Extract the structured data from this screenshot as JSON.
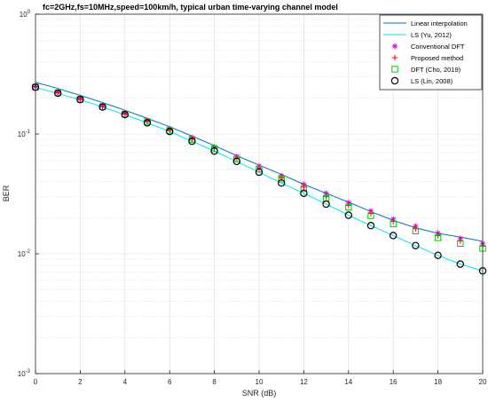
{
  "chart_data": {
    "type": "line",
    "title": "fc=2GHz,fs=10MHz,speed=100km/h, typical urban time-varying channel model",
    "xlabel": "SNR (dB)",
    "ylabel": "BER",
    "xlim": [
      0,
      20
    ],
    "ylim": [
      0.001,
      1
    ],
    "yscale": "log",
    "grid": true,
    "legend_position": "top-right",
    "x_ticks": [
      "0",
      "2",
      "4",
      "6",
      "8",
      "10",
      "12",
      "14",
      "16",
      "18",
      "20"
    ],
    "y_ticks": [
      {
        "base": "10",
        "exp": "0"
      },
      {
        "base": "10",
        "exp": "-1"
      },
      {
        "base": "10",
        "exp": "-2"
      },
      {
        "base": "10",
        "exp": "-3"
      }
    ],
    "x": [
      0,
      1,
      2,
      3,
      4,
      5,
      6,
      7,
      8,
      9,
      10,
      11,
      12,
      13,
      14,
      15,
      16,
      17,
      18,
      19,
      20
    ],
    "series": [
      {
        "name": "Linear interpolation",
        "style": "line",
        "color": "#0072BD",
        "values": [
          0.27,
          0.24,
          0.21,
          0.183,
          0.158,
          0.135,
          0.115,
          0.096,
          0.08,
          0.066,
          0.055,
          0.046,
          0.038,
          0.032,
          0.027,
          0.0225,
          0.019,
          0.0165,
          0.0148,
          0.0138,
          0.0127
        ]
      },
      {
        "name": "LS (Yu, 2012)",
        "style": "line",
        "color": "#00E5EE",
        "values": [
          0.245,
          0.218,
          0.193,
          0.168,
          0.145,
          0.124,
          0.105,
          0.087,
          0.072,
          0.059,
          0.048,
          0.039,
          0.032,
          0.026,
          0.021,
          0.0172,
          0.0142,
          0.0117,
          0.0097,
          0.0082,
          0.0072
        ]
      },
      {
        "name": "Conventional DFT",
        "style": "marker",
        "marker": "asterisk",
        "color": "#E000E0",
        "values": [
          0.25,
          0.225,
          0.198,
          0.172,
          0.15,
          0.13,
          0.11,
          0.093,
          0.078,
          0.065,
          0.054,
          0.045,
          0.038,
          0.032,
          0.0268,
          0.0228,
          0.0195,
          0.017,
          0.0149,
          0.0134,
          0.0122
        ]
      },
      {
        "name": "Proposed method",
        "style": "marker",
        "marker": "plus",
        "color": "#FF0000",
        "values": [
          0.248,
          0.222,
          0.196,
          0.17,
          0.148,
          0.128,
          0.108,
          0.091,
          0.076,
          0.063,
          0.052,
          0.043,
          0.036,
          0.03,
          0.0254,
          0.0217,
          0.0186,
          0.0162,
          0.0142,
          0.0128,
          0.0116
        ]
      },
      {
        "name": "DFT (Cho, 2019)",
        "style": "marker",
        "marker": "square",
        "color": "#00CC00",
        "values": [
          0.246,
          0.221,
          0.195,
          0.169,
          0.147,
          0.127,
          0.107,
          0.09,
          0.075,
          0.062,
          0.051,
          0.042,
          0.035,
          0.029,
          0.0245,
          0.0208,
          0.0178,
          0.0155,
          0.0136,
          0.0122,
          0.0111
        ]
      },
      {
        "name": "LS (Lin, 2008)",
        "style": "marker",
        "marker": "circle",
        "color": "#000000",
        "values": [
          0.246,
          0.219,
          0.194,
          0.168,
          0.145,
          0.124,
          0.105,
          0.087,
          0.072,
          0.059,
          0.048,
          0.039,
          0.032,
          0.026,
          0.021,
          0.0172,
          0.0142,
          0.0117,
          0.0097,
          0.0082,
          0.0072
        ]
      }
    ]
  }
}
